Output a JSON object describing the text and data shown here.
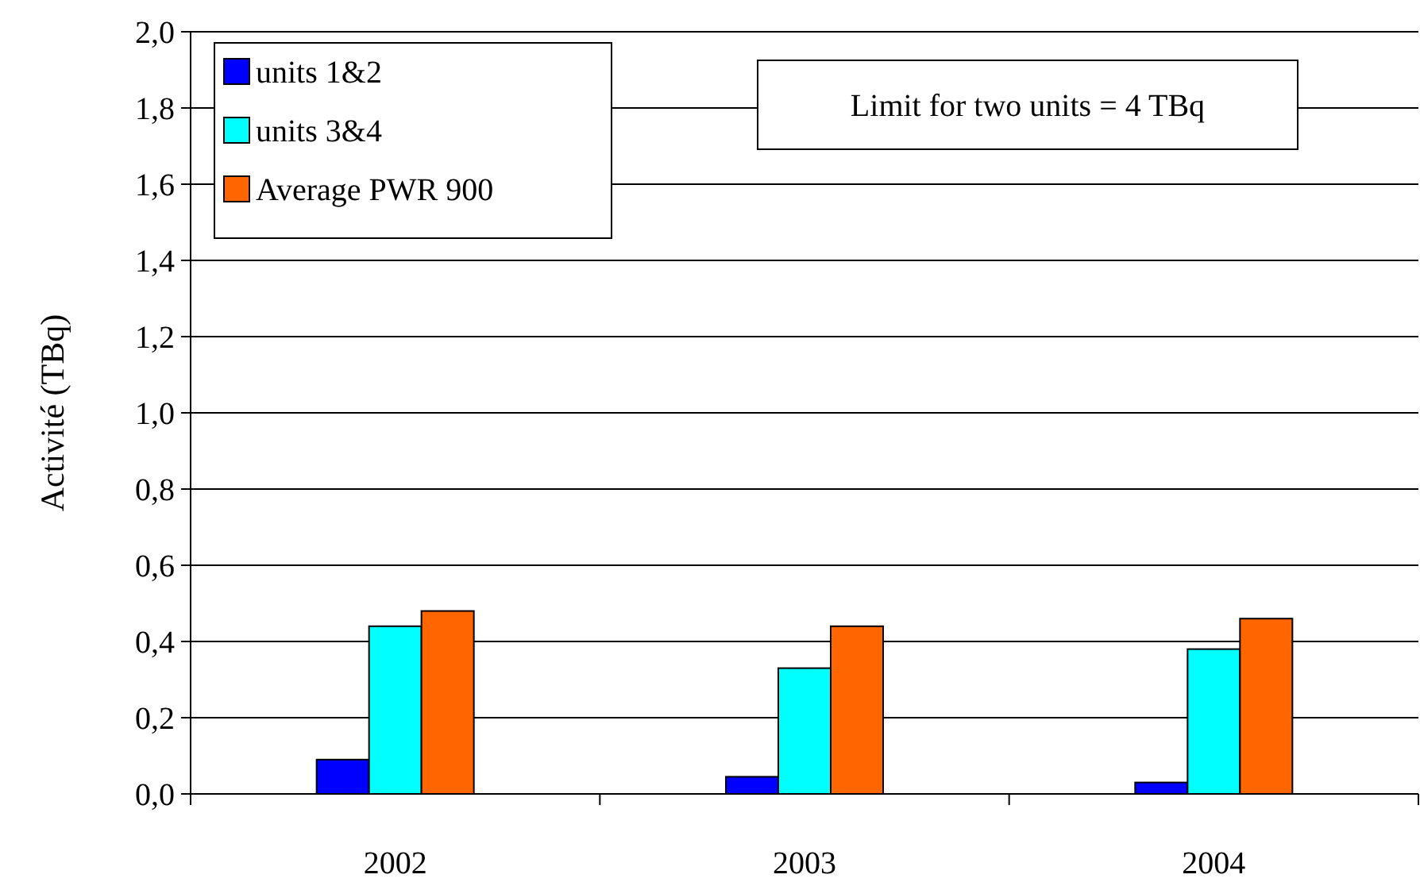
{
  "chart_data": {
    "type": "bar",
    "ylabel": "Activité (TBq)",
    "categories": [
      "2002",
      "2003",
      "2004"
    ],
    "series": [
      {
        "name": "units 1&2",
        "color": "#0000ff",
        "values": [
          0.09,
          0.045,
          0.03
        ]
      },
      {
        "name": "units 3&4",
        "color": "#00ffff",
        "values": [
          0.44,
          0.33,
          0.38
        ]
      },
      {
        "name": "Average PWR 900",
        "color": "#ff6600",
        "values": [
          0.48,
          0.44,
          0.46
        ]
      }
    ],
    "ylim": [
      0,
      2
    ],
    "yticks": [
      {
        "value": 0,
        "label": "0,0"
      },
      {
        "value": 0.2,
        "label": "0,2"
      },
      {
        "value": 0.4,
        "label": "0,4"
      },
      {
        "value": 0.6,
        "label": "0,6"
      },
      {
        "value": 0.8,
        "label": "0,8"
      },
      {
        "value": 1,
        "label": "1,0"
      },
      {
        "value": 1.2,
        "label": "1,2"
      },
      {
        "value": 1.4,
        "label": "1,4"
      },
      {
        "value": 1.6,
        "label": "1,6"
      },
      {
        "value": 1.8,
        "label": "1,8"
      },
      {
        "value": 2,
        "label": "2,0"
      }
    ],
    "grid": "y",
    "legend": "top left",
    "annotations": [
      "Limit for two units = 4 TBq"
    ]
  }
}
